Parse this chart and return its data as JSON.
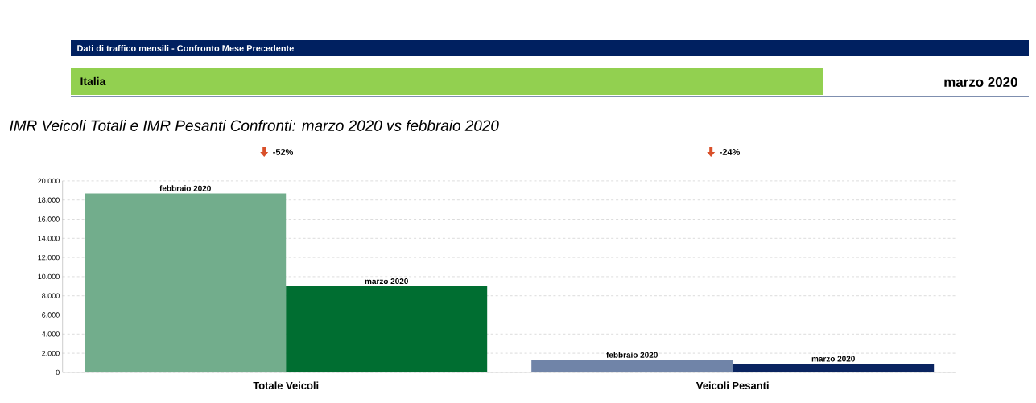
{
  "chart_data": {
    "type": "bar",
    "title": "IMR Veicoli Totali e IMR Pesanti Confronti: marzo 2020 vs febbraio 2020",
    "subtitle": "Dati di traffico mensili - Confronto Mese Precedente",
    "annotations": [
      "Italia",
      "marzo  2020",
      "-52%",
      "-24%"
    ],
    "categories": [
      "Totale Veicoli",
      "Veicoli Pesanti"
    ],
    "series": [
      {
        "name": "febbraio 2020",
        "colors": [
          "#72ad8c",
          "#7084a8"
        ],
        "values": [
          18700,
          1300
        ]
      },
      {
        "name": "marzo 2020",
        "colors": [
          "#006e31",
          "#0a2460"
        ],
        "values": [
          9000,
          900
        ]
      }
    ],
    "ylim": [
      0,
      20000
    ],
    "yticks": [
      {
        "value": 0,
        "label": "0"
      },
      {
        "value": 2000,
        "label": "2.000"
      },
      {
        "value": 4000,
        "label": "4.000"
      },
      {
        "value": 6000,
        "label": "6.000"
      },
      {
        "value": 8000,
        "label": "8.000"
      },
      {
        "value": 10000,
        "label": "10.000"
      },
      {
        "value": 12000,
        "label": "12.000"
      },
      {
        "value": 14000,
        "label": "14.000"
      },
      {
        "value": 16000,
        "label": "16.000"
      },
      {
        "value": 18000,
        "label": "18.000"
      },
      {
        "value": 20000,
        "label": "20.000"
      }
    ],
    "grid": "y"
  }
}
